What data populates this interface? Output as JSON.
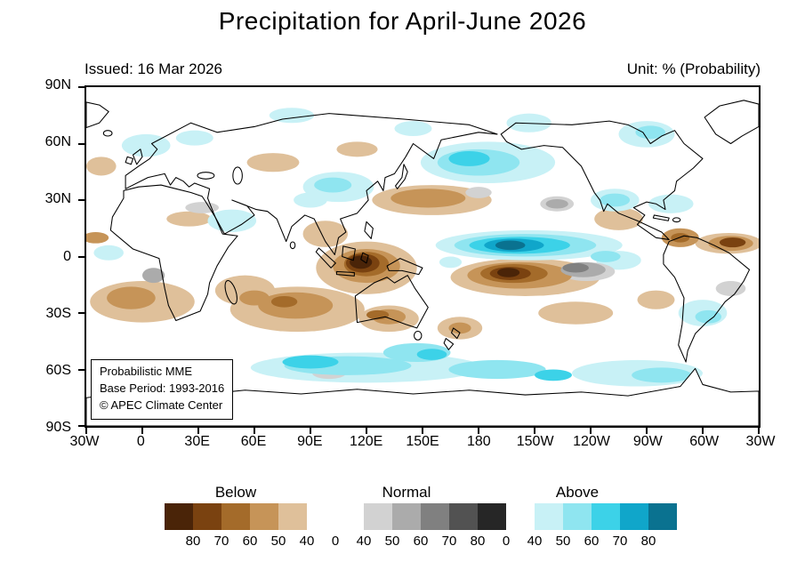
{
  "title": "Precipitation for April-June 2026",
  "header": {
    "issued": "Issued: 16 Mar 2026",
    "unit": "Unit: % (Probability)"
  },
  "map": {
    "y_ticks": [
      "90N",
      "60N",
      "30N",
      "0",
      "30S",
      "60S",
      "90S"
    ],
    "x_ticks": [
      "30W",
      "0",
      "30E",
      "60E",
      "90E",
      "120E",
      "150E",
      "180",
      "150W",
      "120W",
      "90W",
      "60W",
      "30W"
    ],
    "attribution": {
      "line1": "Probabilistic MME",
      "line2": "Base Period: 1993-2016",
      "line3": "© APEC Climate Center"
    }
  },
  "colorbar": {
    "groups": [
      {
        "label": "Below"
      },
      {
        "label": "Normal"
      },
      {
        "label": "Above"
      }
    ],
    "ticks": [
      "80",
      "70",
      "60",
      "50",
      "40",
      "0",
      "40",
      "50",
      "60",
      "70",
      "80",
      "0",
      "40",
      "50",
      "60",
      "70",
      "80"
    ],
    "colors": [
      "#4a2408",
      "#7a4210",
      "#a46b2a",
      "#c69458",
      "#dfc09a",
      "#ffffff",
      "#ffffff",
      "#d2d2d2",
      "#ababab",
      "#808080",
      "#525252",
      "#262626",
      "#ffffff",
      "#c8f1f6",
      "#8fe5f0",
      "#3cd2e8",
      "#10a6ca",
      "#0a7290"
    ]
  },
  "chart_data": {
    "type": "heatmap",
    "title": "Precipitation for April-June 2026",
    "unit": "% (Probability)",
    "issued": "16 Mar 2026",
    "projection": "equirectangular world map, Pacific-centered, 30W eastward around to 30W",
    "lat_ticks": [
      "90N",
      "60N",
      "30N",
      "0",
      "30S",
      "60S",
      "90S"
    ],
    "lon_ticks": [
      "30W",
      "0",
      "30E",
      "60E",
      "90E",
      "120E",
      "150E",
      "180",
      "150W",
      "120W",
      "90W",
      "60W",
      "30W"
    ],
    "categories": [
      "Below",
      "Normal",
      "Above"
    ],
    "probability_thresholds": [
      40,
      50,
      60,
      70,
      80
    ],
    "palette": {
      "b80": "#4a2408",
      "b70": "#7a4210",
      "b60": "#a46b2a",
      "b50": "#c69458",
      "b40": "#dfc09a",
      "n40": "#d2d2d2",
      "n50": "#ababab",
      "n60": "#808080",
      "n70": "#525252",
      "n80": "#262626",
      "a40": "#c8f1f6",
      "a50": "#8fe5f0",
      "a60": "#3cd2e8",
      "a70": "#10a6ca",
      "a80": "#0a7290"
    },
    "notable_features": [
      "Strong below-normal (dark brown) over the Maritime Continent / Indonesia",
      "Strong below-normal over the central South Pacific near 10S between 180 and 140W",
      "Strong above-normal (dark cyan) band along 5-10N across the central/eastern Pacific",
      "Above-normal across the North Pacific near 45-55N",
      "Above-normal band over the Southern Ocean near 50-65S",
      "Below-normal across the subtropical South Indian Ocean and South Atlantic",
      "Below-normal over the tropical Atlantic near 5-10N, 60W-30W",
      "Normal (gray) patch east of the South Pacific brown anomaly near 130W, 5-10S"
    ],
    "regions": [
      {
        "x": 150,
        "y": 96,
        "rx": 27,
        "ry": 14,
        "c": "b40"
      },
      {
        "x": 128,
        "y": 78,
        "rx": 12,
        "ry": 7,
        "c": "b40"
      },
      {
        "x": 235,
        "y": 101,
        "rx": 40,
        "ry": 10,
        "c": "b40"
      },
      {
        "x": 113,
        "y": 118,
        "rx": 36,
        "ry": 12,
        "c": "b40"
      },
      {
        "x": 85,
        "y": 108,
        "rx": 16,
        "ry": 8,
        "c": "b40"
      },
      {
        "x": 30,
        "y": 114,
        "rx": 28,
        "ry": 11,
        "c": "b40"
      },
      {
        "x": 185,
        "y": 60,
        "rx": 32,
        "ry": 8,
        "c": "b40"
      },
      {
        "x": 285,
        "y": 70,
        "rx": 13,
        "ry": 6,
        "c": "b40"
      },
      {
        "x": 262,
        "y": 120,
        "rx": 20,
        "ry": 6,
        "c": "b40"
      },
      {
        "x": 305,
        "y": 113,
        "rx": 10,
        "ry": 5,
        "c": "b40"
      },
      {
        "x": 55,
        "y": 70,
        "rx": 12,
        "ry": 4,
        "c": "b40"
      },
      {
        "x": 100,
        "y": 40,
        "rx": 14,
        "ry": 5,
        "c": "b40"
      },
      {
        "x": 145,
        "y": 33,
        "rx": 11,
        "ry": 4,
        "c": "b40"
      },
      {
        "x": 8,
        "y": 42,
        "rx": 8,
        "ry": 5,
        "c": "b40"
      },
      {
        "x": 344,
        "y": 83,
        "rx": 18,
        "ry": 5.5,
        "c": "b40"
      },
      {
        "x": 200,
        "y": 128,
        "rx": 12,
        "ry": 6,
        "c": "b40"
      },
      {
        "x": 162,
        "y": 123,
        "rx": 16,
        "ry": 7,
        "c": "b40"
      },
      {
        "x": 237,
        "y": 84,
        "rx": 50,
        "ry": 8,
        "c": "a40"
      },
      {
        "x": 215,
        "y": 40,
        "rx": 36,
        "ry": 11,
        "c": "a40"
      },
      {
        "x": 135,
        "y": 53,
        "rx": 19,
        "ry": 8,
        "c": "a40"
      },
      {
        "x": 120,
        "y": 60,
        "rx": 9,
        "ry": 4,
        "c": "a40"
      },
      {
        "x": 283,
        "y": 60,
        "rx": 13,
        "ry": 6,
        "c": "a40"
      },
      {
        "x": 313,
        "y": 62,
        "rx": 12,
        "ry": 5,
        "c": "a40"
      },
      {
        "x": 78,
        "y": 71,
        "rx": 13,
        "ry": 6,
        "c": "a40"
      },
      {
        "x": 32,
        "y": 31,
        "rx": 13,
        "ry": 6,
        "c": "a40"
      },
      {
        "x": 58,
        "y": 27,
        "rx": 10,
        "ry": 4,
        "c": "a40"
      },
      {
        "x": 300,
        "y": 25,
        "rx": 15,
        "ry": 7,
        "c": "a40"
      },
      {
        "x": 237,
        "y": 19,
        "rx": 12,
        "ry": 5,
        "c": "a40"
      },
      {
        "x": 175,
        "y": 22,
        "rx": 10,
        "ry": 4,
        "c": "a40"
      },
      {
        "x": 110,
        "y": 15,
        "rx": 12,
        "ry": 4,
        "c": "a40"
      },
      {
        "x": 150,
        "y": 149,
        "rx": 62,
        "ry": 8,
        "c": "a40"
      },
      {
        "x": 295,
        "y": 152,
        "rx": 35,
        "ry": 7,
        "c": "a40"
      },
      {
        "x": 40,
        "y": 152,
        "rx": 32,
        "ry": 6,
        "c": "a40"
      },
      {
        "x": 330,
        "y": 120,
        "rx": 13,
        "ry": 7,
        "c": "a40"
      },
      {
        "x": 285,
        "y": 92,
        "rx": 12,
        "ry": 5,
        "c": "a40"
      },
      {
        "x": 195,
        "y": 93,
        "rx": 6,
        "ry": 3,
        "c": "a40"
      },
      {
        "x": 12,
        "y": 88,
        "rx": 8,
        "ry": 4,
        "c": "a40"
      },
      {
        "x": 268,
        "y": 98,
        "rx": 15,
        "ry": 5,
        "c": "n40"
      },
      {
        "x": 62,
        "y": 64,
        "rx": 9,
        "ry": 3,
        "c": "n40"
      },
      {
        "x": 345,
        "y": 107,
        "rx": 8,
        "ry": 4,
        "c": "n40"
      },
      {
        "x": 210,
        "y": 56,
        "rx": 7,
        "ry": 3,
        "c": "n40"
      },
      {
        "x": 130,
        "y": 152,
        "rx": 9,
        "ry": 3,
        "c": "n40"
      },
      {
        "x": 252,
        "y": 62,
        "rx": 9,
        "ry": 4,
        "c": "n40"
      },
      {
        "x": 150,
        "y": 95,
        "rx": 18,
        "ry": 9,
        "c": "b50"
      },
      {
        "x": 232,
        "y": 100,
        "rx": 28,
        "ry": 7,
        "c": "b50"
      },
      {
        "x": 112,
        "y": 116,
        "rx": 20,
        "ry": 7,
        "c": "b50"
      },
      {
        "x": 24,
        "y": 112,
        "rx": 13,
        "ry": 6,
        "c": "b50"
      },
      {
        "x": 183,
        "y": 59,
        "rx": 20,
        "ry": 5,
        "c": "b50"
      },
      {
        "x": 318,
        "y": 80,
        "rx": 10,
        "ry": 5,
        "c": "b50"
      },
      {
        "x": 162,
        "y": 122,
        "rx": 9,
        "ry": 4,
        "c": "b50"
      },
      {
        "x": 200,
        "y": 128,
        "rx": 6,
        "ry": 3,
        "c": "b50"
      },
      {
        "x": 345,
        "y": 83,
        "rx": 12,
        "ry": 4,
        "c": "b50"
      },
      {
        "x": 5,
        "y": 80,
        "rx": 7,
        "ry": 3,
        "c": "b50"
      },
      {
        "x": 90,
        "y": 112,
        "rx": 8,
        "ry": 4,
        "c": "b50"
      },
      {
        "x": 235,
        "y": 84,
        "rx": 38,
        "ry": 6,
        "c": "a50"
      },
      {
        "x": 210,
        "y": 40,
        "rx": 22,
        "ry": 7,
        "c": "a50"
      },
      {
        "x": 302,
        "y": 24,
        "rx": 8,
        "ry": 3.5,
        "c": "a50"
      },
      {
        "x": 283,
        "y": 60,
        "rx": 8,
        "ry": 3.5,
        "c": "a50"
      },
      {
        "x": 132,
        "y": 52,
        "rx": 10,
        "ry": 4,
        "c": "a50"
      },
      {
        "x": 140,
        "y": 148,
        "rx": 34,
        "ry": 5,
        "c": "a50"
      },
      {
        "x": 220,
        "y": 150,
        "rx": 26,
        "ry": 5,
        "c": "a50"
      },
      {
        "x": 308,
        "y": 153,
        "rx": 16,
        "ry": 4,
        "c": "a50"
      },
      {
        "x": 177,
        "y": 141,
        "rx": 18,
        "ry": 5,
        "c": "a50"
      },
      {
        "x": 333,
        "y": 122,
        "rx": 7,
        "ry": 3.5,
        "c": "a50"
      },
      {
        "x": 278,
        "y": 90,
        "rx": 8,
        "ry": 3,
        "c": "a50"
      },
      {
        "x": 266,
        "y": 97,
        "rx": 12,
        "ry": 4,
        "c": "n50"
      },
      {
        "x": 252,
        "y": 62,
        "rx": 6,
        "ry": 2.5,
        "c": "n50"
      },
      {
        "x": 36,
        "y": 100,
        "rx": 6,
        "ry": 4,
        "c": "n50"
      },
      {
        "x": 150,
        "y": 94,
        "rx": 12,
        "ry": 6.5,
        "c": "b60"
      },
      {
        "x": 229,
        "y": 99,
        "rx": 18,
        "ry": 5,
        "c": "b60"
      },
      {
        "x": 106,
        "y": 114,
        "rx": 7,
        "ry": 3,
        "c": "b60"
      },
      {
        "x": 156,
        "y": 121,
        "rx": 6,
        "ry": 2.5,
        "c": "b60"
      },
      {
        "x": 318,
        "y": 80,
        "rx": 5,
        "ry": 2.5,
        "c": "b60"
      },
      {
        "x": 262,
        "y": 96,
        "rx": 7,
        "ry": 2.5,
        "c": "n60"
      },
      {
        "x": 148,
        "y": 93.5,
        "rx": 9,
        "ry": 5,
        "c": "b70"
      },
      {
        "x": 227,
        "y": 99,
        "rx": 11,
        "ry": 3.5,
        "c": "b70"
      },
      {
        "x": 346,
        "y": 82.5,
        "rx": 7,
        "ry": 2.6,
        "c": "b70"
      },
      {
        "x": 147,
        "y": 93,
        "rx": 6,
        "ry": 3.5,
        "c": "b80"
      },
      {
        "x": 226,
        "y": 98.5,
        "rx": 6,
        "ry": 2.5,
        "c": "b80"
      },
      {
        "x": 232,
        "y": 84,
        "rx": 27,
        "ry": 4.5,
        "c": "a60"
      },
      {
        "x": 205,
        "y": 38,
        "rx": 11,
        "ry": 4,
        "c": "a60"
      },
      {
        "x": 120,
        "y": 146,
        "rx": 15,
        "ry": 3.5,
        "c": "a60"
      },
      {
        "x": 185,
        "y": 142,
        "rx": 8,
        "ry": 3,
        "c": "a60"
      },
      {
        "x": 250,
        "y": 153,
        "rx": 10,
        "ry": 3,
        "c": "a60"
      },
      {
        "x": 229,
        "y": 84,
        "rx": 16,
        "ry": 3.5,
        "c": "a70"
      },
      {
        "x": 227,
        "y": 84,
        "rx": 8,
        "ry": 2.5,
        "c": "a80"
      }
    ]
  }
}
